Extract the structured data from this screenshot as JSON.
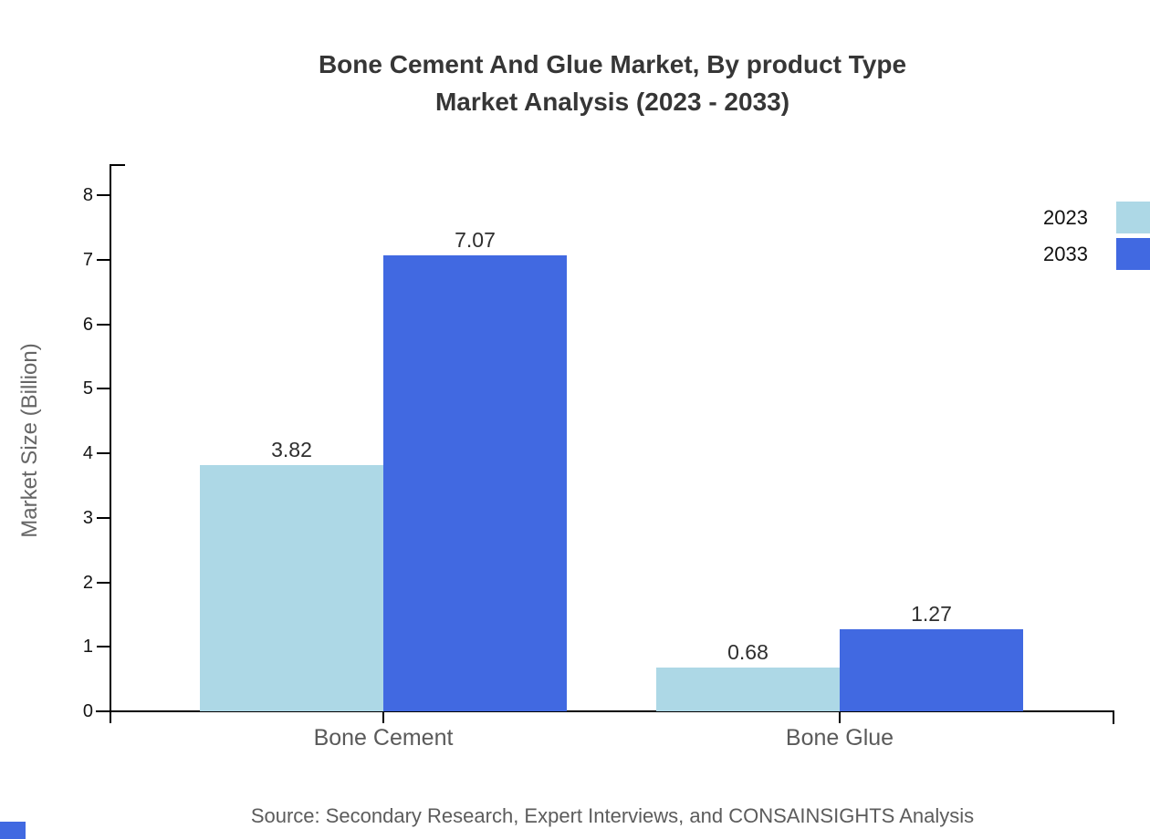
{
  "title": {
    "line1": "Bone Cement And Glue Market, By product Type",
    "line2": "Market Analysis (2023 - 2033)"
  },
  "chart_data": {
    "type": "bar",
    "categories": [
      "Bone Cement",
      "Bone Glue"
    ],
    "series": [
      {
        "name": "2023",
        "color": "#ADD8E6",
        "values": [
          3.82,
          0.68
        ]
      },
      {
        "name": "2033",
        "color": "#4169E1",
        "values": [
          7.07,
          1.27
        ]
      }
    ],
    "ylabel": "Market Size (Billion)",
    "xlabel": "",
    "ylim": [
      0,
      8
    ],
    "yticks": [
      0,
      1,
      2,
      3,
      4,
      5,
      6,
      7,
      8
    ],
    "grid": false,
    "legend_position": "top-right",
    "value_labels": true
  },
  "source": "Source: Secondary Research, Expert Interviews, and CONSAINSIGHTS Analysis",
  "colors": {
    "series_2023": "#ADD8E6",
    "series_2033": "#4169E1",
    "axis": "#000000",
    "title_text": "#363636",
    "muted_text": "#5c5c5c",
    "corner_mark": "#4169E1"
  }
}
